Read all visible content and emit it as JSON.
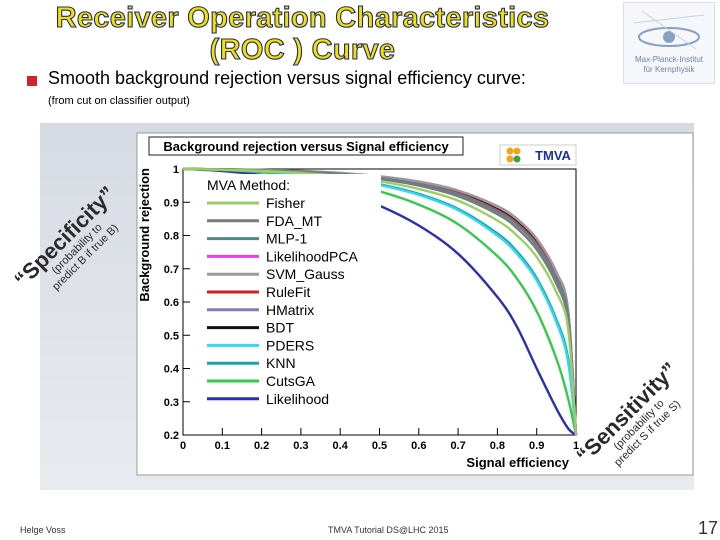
{
  "slide": {
    "title_line1": "Receiver Operation Characteristics",
    "title_line2": "(ROC ) Curve",
    "subtitle": "Smooth background rejection versus signal efficiency curve:",
    "note": "(from cut on classifier output)",
    "logo_line1": "Max-Planck-Institut",
    "logo_line2": "für Kernphysik",
    "footer_left": "Helge Voss",
    "footer_mid": "TMVA Tutorial   DS@LHC 2015",
    "page_number": "17",
    "specificity": "“Specificity”",
    "specificity_note1": "(probability to",
    "specificity_note2": "predict B if true B)",
    "sensitivity": "“Sensitivity”",
    "sensitivity_note1": "(probability to",
    "sensitivity_note2": "predict S if true S)"
  },
  "chart_data": {
    "type": "line",
    "title": "Background rejection versus Signal efficiency",
    "xlabel": "Signal efficiency",
    "ylabel": "Background rejection",
    "xlim": [
      0,
      1
    ],
    "ylim": [
      0.2,
      1
    ],
    "xticks": [
      "0",
      "0.1",
      "0.2",
      "0.3",
      "0.4",
      "0.5",
      "0.6",
      "0.7",
      "0.8",
      "0.9",
      "1"
    ],
    "yticks": [
      "0.2",
      "0.3",
      "0.4",
      "0.5",
      "0.6",
      "0.7",
      "0.8",
      "0.9",
      "1"
    ],
    "logo_text": "TMVA",
    "legend_header": "MVA Method:",
    "legend_placement": "inside-left",
    "x": [
      0,
      0.1,
      0.2,
      0.3,
      0.4,
      0.5,
      0.6,
      0.7,
      0.8,
      0.85,
      0.9,
      0.95,
      0.98,
      1
    ],
    "series": [
      {
        "name": "Fisher",
        "color": "#9ccf62",
        "y": [
          1,
          0.998,
          0.994,
          0.988,
          0.978,
          0.963,
          0.94,
          0.905,
          0.845,
          0.8,
          0.735,
          0.63,
          0.52,
          0.2
        ]
      },
      {
        "name": "FDA_MT",
        "color": "#7a7a7a",
        "y": [
          1,
          0.999,
          0.996,
          0.991,
          0.983,
          0.97,
          0.95,
          0.918,
          0.864,
          0.822,
          0.758,
          0.655,
          0.54,
          0.2
        ]
      },
      {
        "name": "MLP-1",
        "color": "#4d8b86",
        "y": [
          1,
          0.999,
          0.996,
          0.992,
          0.985,
          0.973,
          0.954,
          0.924,
          0.872,
          0.832,
          0.77,
          0.67,
          0.555,
          0.2
        ]
      },
      {
        "name": "LikelihoodPCA",
        "color": "#e83fe6",
        "y": [
          1,
          0.999,
          0.996,
          0.992,
          0.985,
          0.973,
          0.955,
          0.925,
          0.873,
          0.833,
          0.772,
          0.672,
          0.558,
          0.2
        ]
      },
      {
        "name": "SVM_Gauss",
        "color": "#9a9a9a",
        "y": [
          1,
          0.999,
          0.997,
          0.994,
          0.988,
          0.978,
          0.962,
          0.935,
          0.888,
          0.85,
          0.79,
          0.69,
          0.575,
          0.2
        ]
      },
      {
        "name": "RuleFit",
        "color": "#d62020",
        "y": [
          1,
          0.999,
          0.996,
          0.992,
          0.985,
          0.974,
          0.956,
          0.927,
          0.876,
          0.837,
          0.776,
          0.676,
          0.562,
          0.2
        ]
      },
      {
        "name": "HMatrix",
        "color": "#7f7fb3",
        "y": [
          1,
          0.999,
          0.997,
          0.994,
          0.988,
          0.978,
          0.962,
          0.935,
          0.888,
          0.85,
          0.79,
          0.69,
          0.575,
          0.2
        ]
      },
      {
        "name": "BDT",
        "color": "#111111",
        "y": [
          1,
          0.999,
          0.996,
          0.993,
          0.986,
          0.975,
          0.958,
          0.929,
          0.879,
          0.84,
          0.779,
          0.679,
          0.565,
          0.2
        ]
      },
      {
        "name": "PDERS",
        "color": "#35d6ef",
        "y": [
          1,
          0.998,
          0.993,
          0.985,
          0.972,
          0.952,
          0.922,
          0.876,
          0.8,
          0.745,
          0.665,
          0.54,
          0.42,
          0.2
        ]
      },
      {
        "name": "KNN",
        "color": "#1aa5a8",
        "y": [
          1,
          0.998,
          0.993,
          0.985,
          0.973,
          0.954,
          0.925,
          0.88,
          0.806,
          0.752,
          0.672,
          0.548,
          0.43,
          0.2
        ]
      },
      {
        "name": "CutsGA",
        "color": "#36c94a",
        "y": [
          1,
          0.997,
          0.99,
          0.978,
          0.96,
          0.933,
          0.893,
          0.834,
          0.738,
          0.67,
          0.572,
          0.43,
          0.31,
          0.2
        ]
      },
      {
        "name": "Likelihood",
        "color": "#2b2fae",
        "y": [
          1,
          0.994,
          0.982,
          0.962,
          0.933,
          0.89,
          0.83,
          0.745,
          0.615,
          0.525,
          0.4,
          0.28,
          0.22,
          0.2
        ]
      }
    ]
  }
}
